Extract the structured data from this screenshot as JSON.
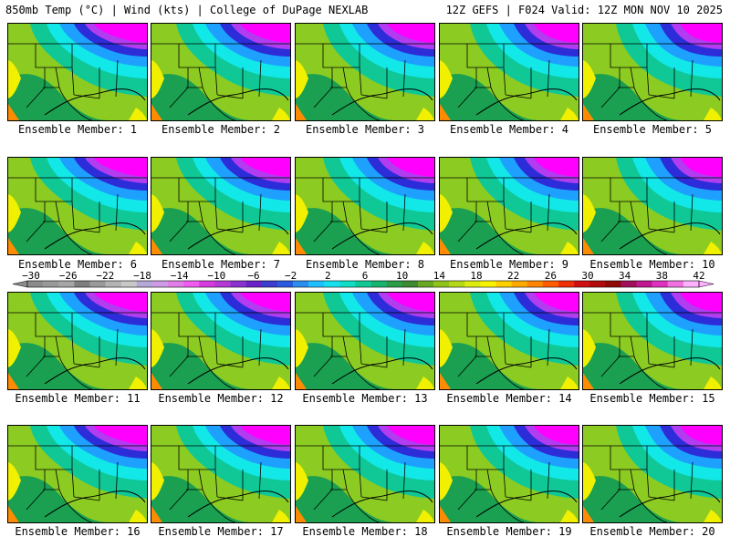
{
  "header": {
    "left": "850mb Temp (°C) | Wind (kts) | College of DuPage NEXLAB",
    "right": "12Z GEFS | F024 Valid: 12Z MON NOV 10 2025"
  },
  "member_label_prefix": "Ensemble Member: ",
  "members": [
    1,
    2,
    3,
    4,
    5,
    6,
    7,
    8,
    9,
    10,
    11,
    12,
    13,
    14,
    15,
    16,
    17,
    18,
    19,
    20
  ],
  "colorbar": {
    "tick_labels": [
      "-30",
      "-26",
      "-22",
      "-18",
      "-14",
      "-10",
      "-6",
      "-2",
      "2",
      "6",
      "10",
      "14",
      "18",
      "22",
      "26",
      "30",
      "34",
      "38",
      "42"
    ],
    "colors": [
      "#8c8c8c",
      "#999999",
      "#a6a6a6",
      "#7f7f7f",
      "#9a9a9a",
      "#b3b3b3",
      "#c7c7c7",
      "#b5a7d8",
      "#cf9be6",
      "#e37de8",
      "#f05cf0",
      "#d63be0",
      "#b43ad8",
      "#8a32d0",
      "#6a22c6",
      "#3c3ccf",
      "#2b58e0",
      "#2a8ef0",
      "#20c0ff",
      "#16e0f0",
      "#11dcc5",
      "#10c896",
      "#18b46e",
      "#2c9c48",
      "#3d8a30",
      "#6aa822",
      "#8ec41c",
      "#b4d816",
      "#dcec10",
      "#f8f400",
      "#ffd000",
      "#ffaa00",
      "#ff8400",
      "#ff5c00",
      "#f03000",
      "#d01010",
      "#b00a0a",
      "#900808",
      "#a0105a",
      "#c01890",
      "#e030c0",
      "#f070e0",
      "#ffb0ff"
    ]
  },
  "map_colors": {
    "magenta": "#ff00ff",
    "purple": "#b13cf0",
    "blue": "#2c2cd8",
    "lightblue": "#1ea0ff",
    "cyan": "#12e8e8",
    "teal": "#10c896",
    "green": "#1aa050",
    "lime": "#8ccc22",
    "yellow": "#f0f000",
    "orange": "#ff8c00"
  }
}
